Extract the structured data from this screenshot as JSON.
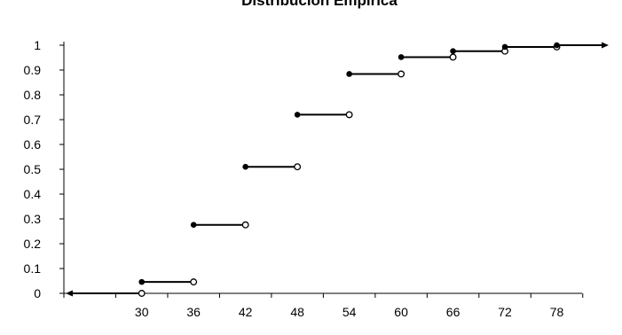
{
  "chart_data": {
    "type": "step",
    "title": "Distribución Empírica",
    "xlabel": "",
    "ylabel": "",
    "x_ticks": [
      30,
      36,
      42,
      48,
      54,
      60,
      66,
      72,
      78
    ],
    "y_ticks": [
      0,
      0.1,
      0.2,
      0.3,
      0.4,
      0.5,
      0.6,
      0.7,
      0.8,
      0.9,
      1
    ],
    "y_tick_labels": [
      "0",
      "0.1",
      "0.2",
      "0.3",
      "0.4",
      "0.5",
      "0.6",
      "0.7",
      "0.8",
      "0.9",
      "1"
    ],
    "ylim": [
      0,
      1
    ],
    "xlim": [
      21,
      84
    ],
    "grid": false,
    "steps": [
      {
        "x_start": 30,
        "x_end": 36,
        "y": 0.046
      },
      {
        "x_start": 36,
        "x_end": 42,
        "y": 0.276
      },
      {
        "x_start": 42,
        "x_end": 48,
        "y": 0.51
      },
      {
        "x_start": 48,
        "x_end": 54,
        "y": 0.72
      },
      {
        "x_start": 54,
        "x_end": 60,
        "y": 0.884
      },
      {
        "x_start": 60,
        "x_end": 66,
        "y": 0.952
      },
      {
        "x_start": 66,
        "x_end": 72,
        "y": 0.976
      },
      {
        "x_start": 72,
        "x_end": 78,
        "y": 0.993
      }
    ],
    "left_ray": {
      "y": 0,
      "x_end": 30
    },
    "right_ray": {
      "y": 1,
      "x_start": 78
    },
    "open_points": [
      {
        "x": 30,
        "y": 0
      },
      {
        "x": 36,
        "y": 0.046
      },
      {
        "x": 42,
        "y": 0.276
      },
      {
        "x": 48,
        "y": 0.51
      },
      {
        "x": 54,
        "y": 0.72
      },
      {
        "x": 60,
        "y": 0.884
      },
      {
        "x": 66,
        "y": 0.952
      },
      {
        "x": 72,
        "y": 0.976
      },
      {
        "x": 78,
        "y": 0.993
      }
    ]
  }
}
